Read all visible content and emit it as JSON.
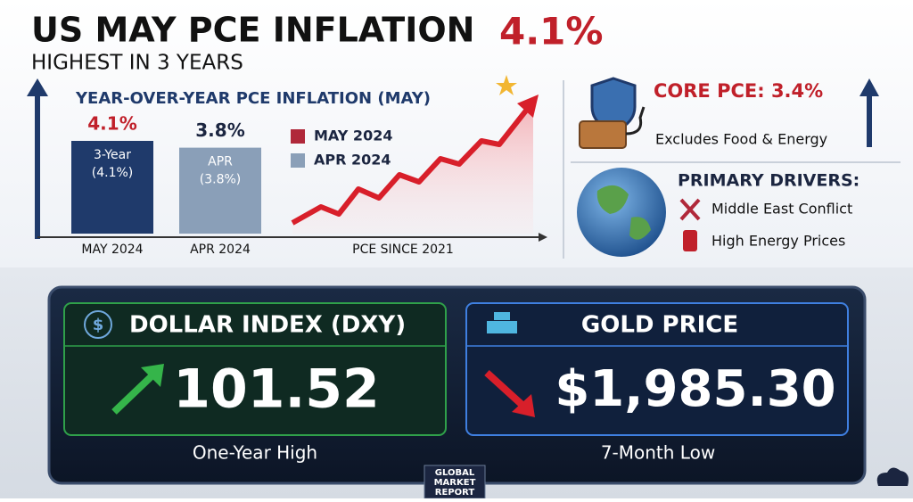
{
  "header": {
    "title": "US MAY PCE INFLATION",
    "headline_value": "4.1%",
    "subtitle": "HIGHEST IN 3 YEARS"
  },
  "chart_data": {
    "type": "bar",
    "title": "YEAR-OVER-YEAR PCE INFLATION (MAY)",
    "categories": [
      "MAY 2024",
      "APR 2024"
    ],
    "values": [
      4.1,
      3.8
    ],
    "value_labels": [
      "4.1%",
      "3.8%"
    ],
    "colors": [
      "#1f3a6b",
      "#8a9fb8"
    ],
    "label_colors": [
      "#c0202a",
      "#1b2540"
    ],
    "bar_labels": [
      [
        "3-Year",
        "(4.1%)"
      ],
      [
        "APR",
        "(3.8%)"
      ]
    ],
    "legend": [
      {
        "name": "MAY 2024",
        "color": "#b0283a"
      },
      {
        "name": "APR 2024",
        "color": "#8a9fb8"
      }
    ],
    "trend_label": "PCE SINCE 2021"
  },
  "core": {
    "title": "CORE PCE: 3.4%",
    "note": "Excludes Food & Energy"
  },
  "drivers": {
    "title": "PRIMARY DRIVERS:",
    "items": [
      "Middle East Conflict",
      "High Energy Prices"
    ]
  },
  "dollar": {
    "title": "DOLLAR INDEX (DXY)",
    "value": "101.52",
    "note": "One-Year High"
  },
  "gold": {
    "title": "GOLD PRICE",
    "value": "$1,985.30",
    "note": "7-Month Low"
  },
  "badge": [
    "GLOBAL",
    "MARKET",
    "REPORT"
  ]
}
